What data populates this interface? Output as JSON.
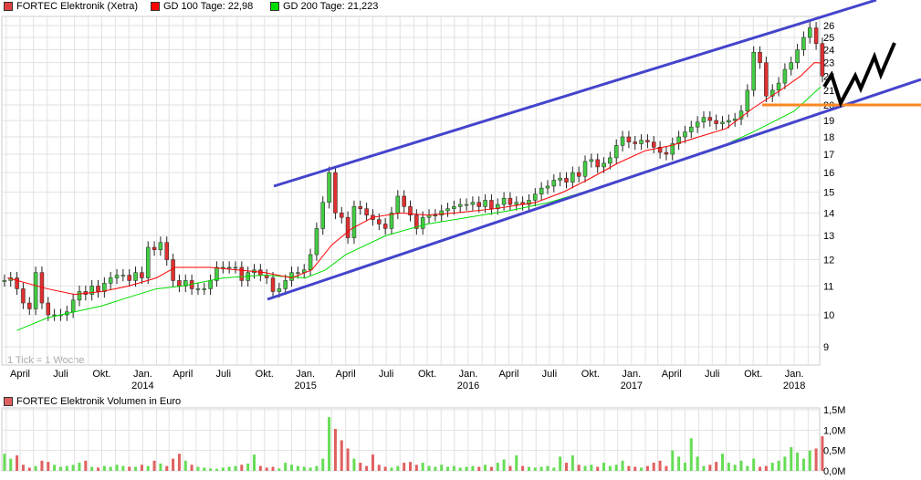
{
  "legend": {
    "price": {
      "label": "FORTEC Elektronik (Xetra)",
      "color": "#e04040"
    },
    "gd100": {
      "label": "GD 100 Tage: 22,98",
      "color": "#ff0000"
    },
    "gd200": {
      "label": "GD 200 Tage: 21,223",
      "color": "#00dd00"
    },
    "volume": {
      "label": "FORTEC Elektronik Volumen in Euro",
      "color": "#e06060"
    }
  },
  "tick_note": "1 Tick = 1 Woche",
  "chart_data": [
    {
      "type": "candlestick",
      "scale": "log",
      "ylim": [
        8.8,
        27
      ],
      "y_ticks": [
        "9",
        "10",
        "11",
        "12",
        "13",
        "14",
        "15",
        "16",
        "17",
        "18",
        "19",
        "20",
        "21",
        "22",
        "23",
        "24",
        "25",
        "26"
      ],
      "x_ticks": [
        {
          "date": "2013-04-01",
          "label": "April"
        },
        {
          "date": "2013-07-01",
          "label": "Juli"
        },
        {
          "date": "2013-10-01",
          "label": "Okt."
        },
        {
          "date": "2014-01-01",
          "label": "Jan.",
          "year": "2014"
        },
        {
          "date": "2014-04-01",
          "label": "April"
        },
        {
          "date": "2014-07-01",
          "label": "Juli"
        },
        {
          "date": "2014-10-01",
          "label": "Okt."
        },
        {
          "date": "2015-01-01",
          "label": "Jan.",
          "year": "2015"
        },
        {
          "date": "2015-04-01",
          "label": "April"
        },
        {
          "date": "2015-07-01",
          "label": "Juli"
        },
        {
          "date": "2015-10-01",
          "label": "Okt."
        },
        {
          "date": "2016-01-01",
          "label": "Jan.",
          "year": "2016"
        },
        {
          "date": "2016-04-01",
          "label": "April"
        },
        {
          "date": "2016-07-01",
          "label": "Juli"
        },
        {
          "date": "2016-10-01",
          "label": "Okt."
        },
        {
          "date": "2017-01-01",
          "label": "Jan.",
          "year": "2017"
        },
        {
          "date": "2017-04-01",
          "label": "April"
        },
        {
          "date": "2017-07-01",
          "label": "Juli"
        },
        {
          "date": "2017-10-01",
          "label": "Okt."
        },
        {
          "date": "2018-01-01",
          "label": "Jan.",
          "year": "2018"
        }
      ],
      "grid": true,
      "start_date": "2013-02-25",
      "period_days": 14,
      "closes": [
        11.2,
        11.3,
        10.9,
        10.4,
        10.2,
        11.5,
        10.4,
        10.0,
        10.0,
        10.0,
        10.1,
        10.5,
        10.8,
        10.7,
        11.0,
        10.8,
        11.1,
        11.3,
        11.4,
        11.4,
        11.2,
        11.5,
        11.3,
        12.5,
        12.4,
        12.7,
        12.0,
        11.2,
        11.0,
        11.2,
        10.9,
        10.9,
        10.9,
        11.2,
        11.7,
        11.7,
        11.7,
        11.7,
        11.2,
        11.5,
        11.6,
        11.4,
        11.3,
        10.8,
        10.9,
        11.2,
        11.5,
        11.5,
        11.6,
        12.2,
        13.3,
        14.5,
        16.0,
        14.0,
        13.8,
        12.9,
        14.3,
        14.2,
        13.9,
        13.7,
        13.5,
        13.3,
        14.0,
        14.8,
        14.3,
        13.9,
        13.3,
        13.8,
        13.9,
        13.9,
        14.1,
        14.2,
        14.3,
        14.4,
        14.4,
        14.5,
        14.3,
        14.6,
        14.2,
        14.4,
        14.7,
        14.4,
        14.5,
        14.4,
        14.6,
        14.9,
        15.2,
        15.3,
        15.6,
        15.7,
        15.5,
        16.0,
        15.8,
        16.6,
        16.7,
        16.3,
        16.5,
        16.8,
        17.5,
        18.0,
        17.7,
        17.6,
        17.8,
        17.7,
        17.4,
        17.1,
        17.0,
        17.6,
        18.0,
        18.3,
        18.6,
        18.9,
        19.2,
        19.0,
        18.8,
        18.9,
        19.0,
        19.1,
        19.6,
        21.0,
        23.8,
        23.0,
        20.6,
        21.0,
        21.5,
        22.5,
        23.0,
        24.0,
        25.0,
        25.8,
        24.5,
        22.0
      ],
      "gd100": [
        [
          "2013-03-04",
          11.3
        ],
        [
          "2013-06-01",
          10.9
        ],
        [
          "2013-08-01",
          10.7
        ],
        [
          "2013-10-01",
          10.8
        ],
        [
          "2013-12-01",
          11.0
        ],
        [
          "2014-02-01",
          11.3
        ],
        [
          "2014-03-15",
          11.7
        ],
        [
          "2014-06-01",
          11.7
        ],
        [
          "2014-08-01",
          11.6
        ],
        [
          "2014-10-01",
          11.5
        ],
        [
          "2014-12-01",
          11.3
        ],
        [
          "2015-01-15",
          11.6
        ],
        [
          "2015-03-01",
          12.6
        ],
        [
          "2015-04-15",
          13.3
        ],
        [
          "2015-06-01",
          13.8
        ],
        [
          "2015-08-01",
          14.0
        ],
        [
          "2015-10-01",
          13.9
        ],
        [
          "2015-12-01",
          14.0
        ],
        [
          "2016-03-01",
          14.2
        ],
        [
          "2016-06-01",
          14.5
        ],
        [
          "2016-08-01",
          15.0
        ],
        [
          "2016-10-01",
          15.7
        ],
        [
          "2016-12-01",
          16.5
        ],
        [
          "2017-02-01",
          17.2
        ],
        [
          "2017-04-01",
          17.5
        ],
        [
          "2017-06-01",
          18.0
        ],
        [
          "2017-08-01",
          18.5
        ],
        [
          "2017-10-01",
          19.8
        ],
        [
          "2017-12-01",
          21.0
        ],
        [
          "2018-01-15",
          22.0
        ],
        [
          "2018-02-15",
          23.0
        ],
        [
          "2018-03-01",
          22.98
        ]
      ],
      "gd200": [
        [
          "2013-03-25",
          9.5
        ],
        [
          "2013-06-01",
          9.9
        ],
        [
          "2013-08-01",
          10.1
        ],
        [
          "2013-10-01",
          10.3
        ],
        [
          "2013-12-01",
          10.6
        ],
        [
          "2014-02-01",
          10.9
        ],
        [
          "2014-04-01",
          11.0
        ],
        [
          "2014-07-01",
          11.3
        ],
        [
          "2014-10-01",
          11.4
        ],
        [
          "2015-01-01",
          11.3
        ],
        [
          "2015-02-15",
          11.6
        ],
        [
          "2015-04-01",
          12.2
        ],
        [
          "2015-07-01",
          13.0
        ],
        [
          "2015-10-01",
          13.5
        ],
        [
          "2016-01-01",
          13.8
        ],
        [
          "2016-04-01",
          14.1
        ],
        [
          "2016-07-01",
          14.5
        ],
        [
          "2016-10-01",
          15.1
        ],
        [
          "2017-01-01",
          15.8
        ],
        [
          "2017-04-01",
          16.5
        ],
        [
          "2017-07-01",
          17.2
        ],
        [
          "2017-10-01",
          18.3
        ],
        [
          "2018-01-01",
          19.6
        ],
        [
          "2018-03-01",
          21.223
        ]
      ],
      "annotations": {
        "channel_color": "#4444cc",
        "support_color": "#ff8822",
        "support_level": 20,
        "zigzag_color": "#000000"
      }
    },
    {
      "type": "bar",
      "title": "FORTEC Elektronik Volumen in Euro",
      "ylim": [
        0,
        1.5
      ],
      "y_ticks": [
        "0,0M",
        "0,5M",
        "1,0M",
        "1,5M"
      ],
      "up_color": "#66dd55",
      "down_color": "#e06060",
      "values_m": [
        0.42,
        0.3,
        0.38,
        0.15,
        0.08,
        0.12,
        0.25,
        0.22,
        0.15,
        0.1,
        0.12,
        0.15,
        0.2,
        0.25,
        0.1,
        0.08,
        0.12,
        0.1,
        0.15,
        0.12,
        0.1,
        0.1,
        0.15,
        0.12,
        0.25,
        0.18,
        0.12,
        0.3,
        0.42,
        0.25,
        0.15,
        0.1,
        0.08,
        0.06,
        0.05,
        0.08,
        0.1,
        0.12,
        0.15,
        0.18,
        0.4,
        0.12,
        0.08,
        0.1,
        0.06,
        0.2,
        0.15,
        0.12,
        0.1,
        0.08,
        0.12,
        0.3,
        1.32,
        1.03,
        0.75,
        0.55,
        0.3,
        0.2,
        0.12,
        0.4,
        0.15,
        0.1,
        0.08,
        0.12,
        0.2,
        0.22,
        0.15,
        0.2,
        0.12,
        0.1,
        0.15,
        0.1,
        0.12,
        0.08,
        0.1,
        0.12,
        0.1,
        0.15,
        0.1,
        0.2,
        0.28,
        0.12,
        0.38,
        0.12,
        0.1,
        0.08,
        0.1,
        0.12,
        0.08,
        0.35,
        0.2,
        0.38,
        0.15,
        0.12,
        0.15,
        0.1,
        0.2,
        0.12,
        0.15,
        0.25,
        0.12,
        0.1,
        0.08,
        0.12,
        0.2,
        0.25,
        0.12,
        0.5,
        0.35,
        0.2,
        0.8,
        0.35,
        0.12,
        0.15,
        0.22,
        0.42,
        0.2,
        0.15,
        0.25,
        0.12,
        0.3,
        0.1,
        0.12,
        0.2,
        0.25,
        0.35,
        0.58,
        0.45,
        0.3,
        0.5,
        0.55,
        0.85
      ]
    }
  ]
}
